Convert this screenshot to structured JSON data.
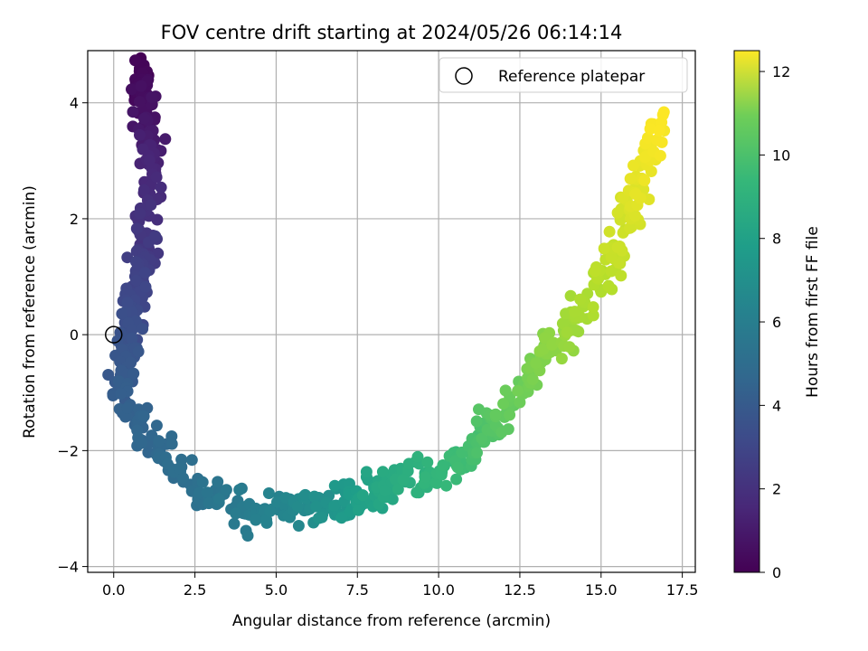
{
  "chart_data": {
    "type": "scatter",
    "title": "FOV centre drift starting at 2024/05/26 06:14:14",
    "xlabel": "Angular distance from reference (arcmin)",
    "ylabel": "Rotation from reference (arcmin)",
    "xlim": [
      -0.8,
      17.9
    ],
    "ylim": [
      -4.1,
      4.9
    ],
    "xticks": [
      0.0,
      2.5,
      5.0,
      7.5,
      10.0,
      12.5,
      15.0,
      17.5
    ],
    "xtick_labels": [
      "0.0",
      "2.5",
      "5.0",
      "7.5",
      "10.0",
      "12.5",
      "15.0",
      "17.5"
    ],
    "yticks": [
      -4,
      -2,
      0,
      2,
      4
    ],
    "ytick_labels": [
      "−4",
      "−2",
      "0",
      "2",
      "4"
    ],
    "grid": true,
    "colormap": "viridis",
    "colorbar": {
      "label": "Hours from first FF file",
      "range": [
        0,
        12.5
      ],
      "ticks": [
        0,
        2,
        4,
        6,
        8,
        10,
        12
      ],
      "tick_labels": [
        "0",
        "2",
        "4",
        "6",
        "8",
        "10",
        "12"
      ]
    },
    "legend": {
      "placement": "top-right",
      "entries": [
        "Reference platepar"
      ]
    },
    "reference_point": {
      "x": 0.0,
      "y": 0.0
    },
    "path_knots": [
      {
        "h": 0.0,
        "x": 0.8,
        "y": 4.5
      },
      {
        "h": 0.3,
        "x": 0.85,
        "y": 4.3
      },
      {
        "h": 0.7,
        "x": 1.0,
        "y": 3.7
      },
      {
        "h": 1.2,
        "x": 1.2,
        "y": 3.0
      },
      {
        "h": 1.7,
        "x": 1.0,
        "y": 2.2
      },
      {
        "h": 2.2,
        "x": 0.9,
        "y": 1.4
      },
      {
        "h": 2.6,
        "x": 0.7,
        "y": 0.8
      },
      {
        "h": 3.0,
        "x": 0.5,
        "y": 0.2
      },
      {
        "h": 3.4,
        "x": 0.3,
        "y": -0.5
      },
      {
        "h": 3.8,
        "x": 0.4,
        "y": -1.2
      },
      {
        "h": 4.2,
        "x": 1.2,
        "y": -1.9
      },
      {
        "h": 4.6,
        "x": 2.5,
        "y": -2.6
      },
      {
        "h": 5.2,
        "x": 4.0,
        "y": -3.1
      },
      {
        "h": 5.8,
        "x": 5.5,
        "y": -3.0
      },
      {
        "h": 6.5,
        "x": 6.8,
        "y": -3.0
      },
      {
        "h": 7.2,
        "x": 7.8,
        "y": -2.8
      },
      {
        "h": 7.6,
        "x": 8.6,
        "y": -2.5
      },
      {
        "h": 8.2,
        "x": 10.0,
        "y": -2.4
      },
      {
        "h": 8.8,
        "x": 11.2,
        "y": -2.0
      },
      {
        "h": 9.4,
        "x": 12.0,
        "y": -1.3
      },
      {
        "h": 10.0,
        "x": 13.0,
        "y": -0.6
      },
      {
        "h": 10.6,
        "x": 14.0,
        "y": 0.1
      },
      {
        "h": 11.1,
        "x": 15.0,
        "y": 0.9
      },
      {
        "h": 11.6,
        "x": 15.6,
        "y": 1.8
      },
      {
        "h": 12.1,
        "x": 16.3,
        "y": 2.8
      },
      {
        "h": 12.5,
        "x": 16.8,
        "y": 3.8
      }
    ],
    "points_per_segment": 30,
    "scatter_spread": {
      "x": 0.28,
      "y": 0.24
    }
  }
}
